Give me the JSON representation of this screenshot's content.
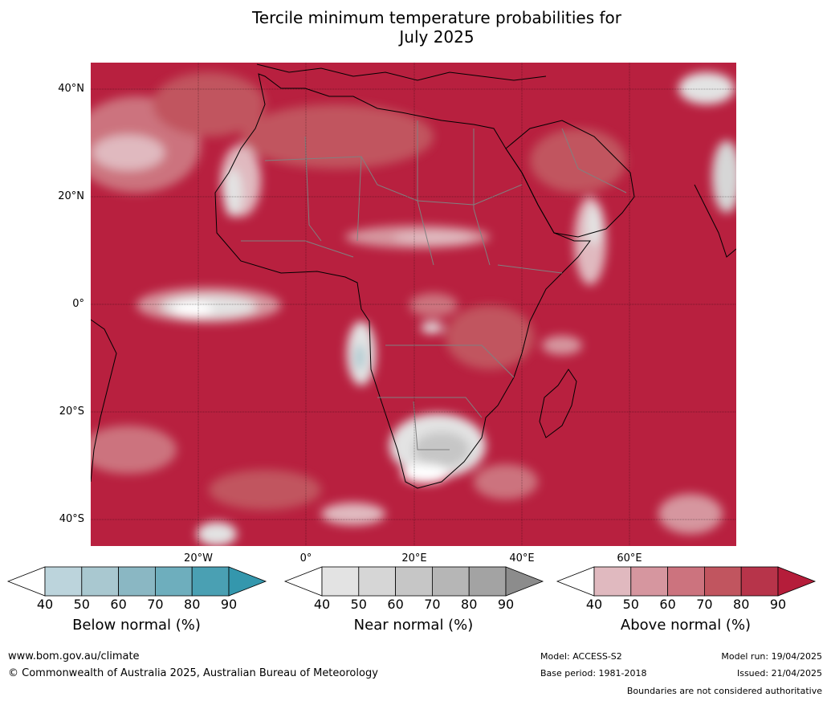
{
  "title_line1": "Tercile minimum temperature probabilities for",
  "title_line2": "July 2025",
  "lat_labels": [
    "40°N",
    "20°N",
    "0°",
    "20°S",
    "40°S"
  ],
  "lon_labels": [
    "20°W",
    "0°",
    "20°E",
    "40°E",
    "60°E"
  ],
  "colors": {
    "below": [
      "#ffffff",
      "#bcd4dc",
      "#a9c8d0",
      "#8ab7c3",
      "#6eaebd",
      "#4aa0b3",
      "#3497ad"
    ],
    "near": [
      "#ffffff",
      "#e3e3e3",
      "#d6d6d6",
      "#c6c6c6",
      "#b6b6b6",
      "#a3a3a3",
      "#8c8c8c"
    ],
    "above": [
      "#ffffff",
      "#e0b9bf",
      "#d6969f",
      "#cc737e",
      "#c1555f",
      "#b7344a",
      "#b51d3a"
    ],
    "ocean_base": "#b8203f"
  },
  "colorbars": [
    {
      "label": "Below normal (%)",
      "ticks": [
        "40",
        "50",
        "60",
        "70",
        "80",
        "90"
      ]
    },
    {
      "label": "Near normal (%)",
      "ticks": [
        "40",
        "50",
        "60",
        "70",
        "80",
        "90"
      ]
    },
    {
      "label": "Above normal (%)",
      "ticks": [
        "40",
        "50",
        "60",
        "70",
        "80",
        "90"
      ]
    }
  ],
  "footer": {
    "url": "www.bom.gov.au/climate",
    "copyright": "© Commonwealth of Australia 2025, Australian Bureau of Meteorology",
    "model": "Model: ACCESS-S2",
    "base_period": "Base period: 1981-2018",
    "model_run": "Model run: 19/04/2025",
    "issued": "Issued: 21/04/2025",
    "disclaimer": "Boundaries are not considered authoritative"
  }
}
